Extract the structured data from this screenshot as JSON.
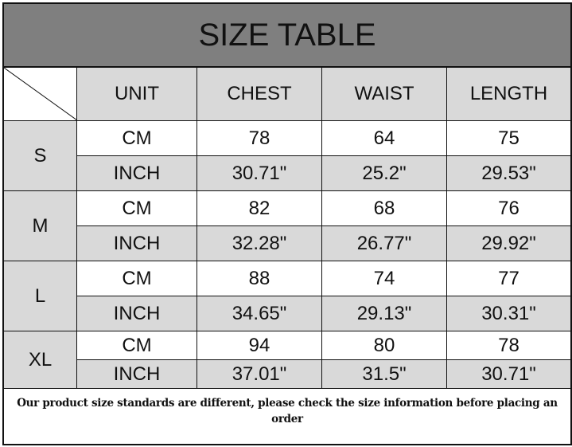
{
  "title": "SIZE TABLE",
  "headers": [
    "UNIT",
    "CHEST",
    "WAIST",
    "LENGTH"
  ],
  "sizes": [
    {
      "size": "S",
      "rows": [
        {
          "unit": "CM",
          "values": [
            "78",
            "64",
            "75"
          ]
        },
        {
          "unit": "INCH",
          "values": [
            "30.71\"",
            "25.2\"",
            "29.53\""
          ]
        }
      ]
    },
    {
      "size": "M",
      "rows": [
        {
          "unit": "CM",
          "values": [
            "82",
            "68",
            "76"
          ]
        },
        {
          "unit": "INCH",
          "values": [
            "32.28\"",
            "26.77\"",
            "29.92\""
          ]
        }
      ]
    },
    {
      "size": "L",
      "rows": [
        {
          "unit": "CM",
          "values": [
            "88",
            "74",
            "77"
          ]
        },
        {
          "unit": "INCH",
          "values": [
            "34.65\"",
            "29.13\"",
            "30.31\""
          ]
        }
      ]
    },
    {
      "size": "XL",
      "rows": [
        {
          "unit": "CM",
          "values": [
            "94",
            "80",
            "78"
          ]
        },
        {
          "unit": "INCH",
          "values": [
            "37.01\"",
            "31.5\"",
            "30.71\""
          ]
        }
      ]
    }
  ],
  "note": "Our product size standards are different, please check the size information before placing an order",
  "colors": {
    "title_bg": "#7f7f7f",
    "cell_gray": "#d9d9d9"
  }
}
